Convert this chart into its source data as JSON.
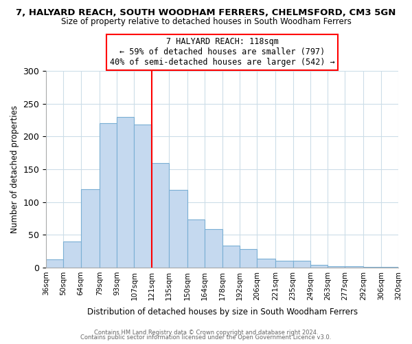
{
  "title1": "7, HALYARD REACH, SOUTH WOODHAM FERRERS, CHELMSFORD, CM3 5GN",
  "title2": "Size of property relative to detached houses in South Woodham Ferrers",
  "xlabel": "Distribution of detached houses by size in South Woodham Ferrers",
  "ylabel": "Number of detached properties",
  "bins": [
    36,
    50,
    64,
    79,
    93,
    107,
    121,
    135,
    150,
    164,
    178,
    192,
    206,
    221,
    235,
    249,
    263,
    277,
    292,
    306,
    320
  ],
  "bin_labels": [
    "36sqm",
    "50sqm",
    "64sqm",
    "79sqm",
    "93sqm",
    "107sqm",
    "121sqm",
    "135sqm",
    "150sqm",
    "164sqm",
    "178sqm",
    "192sqm",
    "206sqm",
    "221sqm",
    "235sqm",
    "249sqm",
    "263sqm",
    "277sqm",
    "292sqm",
    "306sqm",
    "320sqm"
  ],
  "values": [
    12,
    40,
    120,
    220,
    230,
    218,
    160,
    119,
    73,
    59,
    33,
    28,
    14,
    10,
    10,
    4,
    2,
    2,
    1,
    1
  ],
  "bar_color": "#c5d9ef",
  "bar_edge_color": "#7aafd4",
  "vline_x": 121,
  "vline_color": "red",
  "annotation_title": "7 HALYARD REACH: 118sqm",
  "annotation_line1": "← 59% of detached houses are smaller (797)",
  "annotation_line2": "40% of semi-detached houses are larger (542) →",
  "annotation_box_color": "white",
  "annotation_box_edge": "red",
  "ylim": [
    0,
    300
  ],
  "yticks": [
    0,
    50,
    100,
    150,
    200,
    250,
    300
  ],
  "footnote1": "Contains HM Land Registry data © Crown copyright and database right 2024.",
  "footnote2": "Contains public sector information licensed under the Open Government Licence v3.0."
}
